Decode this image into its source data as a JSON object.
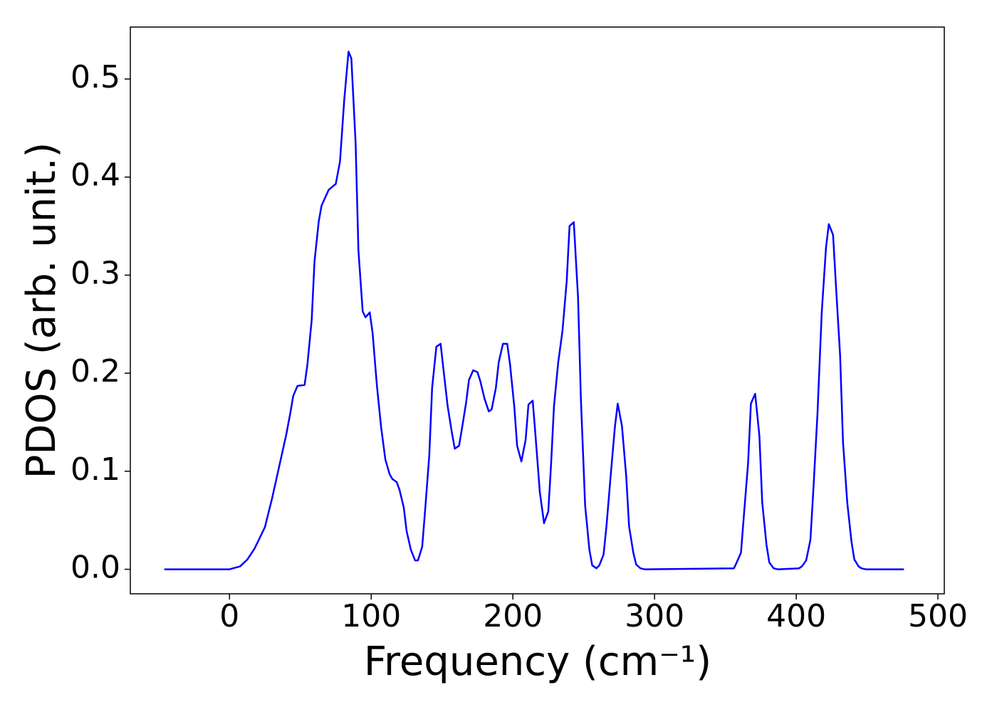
{
  "chart_data": {
    "type": "line",
    "xlabel": "Frequency (cm⁻¹)",
    "ylabel": "PDOS (arb. unit.)",
    "xlim": [
      -70,
      504.5
    ],
    "ylim": [
      -0.025,
      0.553
    ],
    "xticks": [
      0,
      100,
      200,
      300,
      400,
      500
    ],
    "yticks": [
      {
        "value": 0,
        "label": "0.0"
      },
      0.1,
      0.2,
      0.3,
      0.4,
      0.5
    ],
    "grid": false,
    "series": [
      {
        "name": "PDOS",
        "color": "#0000ff",
        "x": [
          -46,
          0,
          7.5,
          12.6,
          17.6,
          20,
          25,
          30,
          40,
          43,
          45,
          48,
          53,
          55,
          58,
          60,
          63,
          65,
          70,
          75,
          78,
          81,
          84,
          86,
          89,
          91,
          94,
          96,
          99,
          101,
          104,
          107,
          110,
          113,
          115,
          118,
          120,
          123,
          125,
          128,
          131,
          133,
          136,
          138,
          141,
          143,
          146,
          149,
          151,
          154,
          157,
          159,
          162,
          164,
          167,
          169,
          172,
          175,
          177,
          180,
          183,
          185,
          188,
          190,
          193,
          196,
          198,
          201,
          203,
          206,
          209,
          211,
          214,
          216,
          219,
          222,
          225,
          227,
          229,
          232,
          235,
          238,
          240,
          243,
          246,
          248,
          251,
          254,
          256,
          259,
          261,
          264,
          266,
          269,
          272,
          274,
          277,
          280,
          282,
          285,
          287,
          290,
          293,
          356,
          358,
          361,
          363,
          366,
          368,
          371,
          374,
          376,
          379,
          381,
          384,
          387,
          402,
          404,
          407,
          410,
          412,
          415,
          418,
          421,
          423,
          426,
          428,
          431,
          433,
          436,
          439,
          441,
          444,
          446,
          449,
          476
        ],
        "values": [
          0,
          0,
          0.003,
          0.01,
          0.021,
          0.028,
          0.043,
          0.072,
          0.137,
          0.16,
          0.177,
          0.187,
          0.188,
          0.209,
          0.254,
          0.314,
          0.355,
          0.371,
          0.387,
          0.393,
          0.416,
          0.479,
          0.528,
          0.521,
          0.435,
          0.325,
          0.263,
          0.257,
          0.262,
          0.241,
          0.188,
          0.145,
          0.112,
          0.097,
          0.092,
          0.089,
          0.081,
          0.063,
          0.039,
          0.02,
          0.009,
          0.009,
          0.023,
          0.059,
          0.116,
          0.185,
          0.227,
          0.23,
          0.204,
          0.166,
          0.139,
          0.123,
          0.126,
          0.143,
          0.17,
          0.193,
          0.203,
          0.201,
          0.192,
          0.174,
          0.161,
          0.163,
          0.185,
          0.211,
          0.23,
          0.23,
          0.209,
          0.166,
          0.126,
          0.11,
          0.132,
          0.168,
          0.172,
          0.136,
          0.079,
          0.047,
          0.059,
          0.108,
          0.166,
          0.211,
          0.243,
          0.294,
          0.35,
          0.354,
          0.277,
          0.174,
          0.065,
          0.02,
          0.004,
          0.001,
          0.004,
          0.015,
          0.043,
          0.095,
          0.145,
          0.169,
          0.146,
          0.095,
          0.044,
          0.017,
          0.005,
          0.001,
          0,
          0.001,
          0.007,
          0.017,
          0.054,
          0.108,
          0.169,
          0.179,
          0.136,
          0.068,
          0.025,
          0.007,
          0.001,
          0,
          0.001,
          0.003,
          0.009,
          0.03,
          0.079,
          0.159,
          0.262,
          0.328,
          0.352,
          0.341,
          0.29,
          0.217,
          0.13,
          0.068,
          0.028,
          0.01,
          0.003,
          0.001,
          0,
          0
        ]
      }
    ]
  }
}
